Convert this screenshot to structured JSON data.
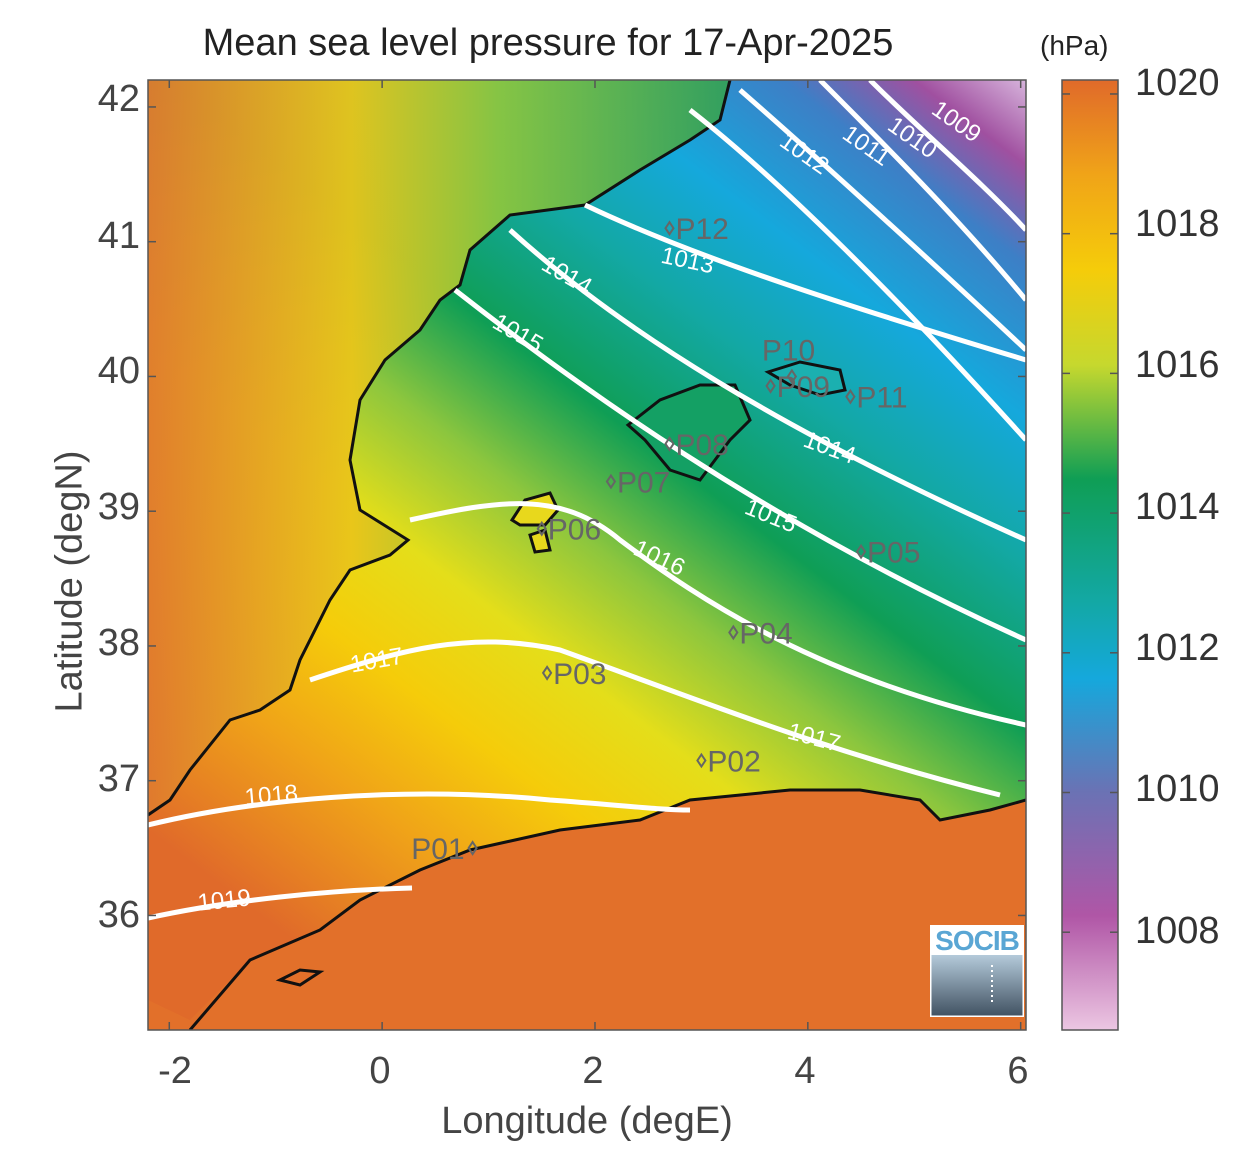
{
  "title": "Mean sea level pressure for 17-Apr-2025",
  "colorbar_unit": "(hPa)",
  "xlabel": "Longitude (degE)",
  "ylabel": "Latitude (degN)",
  "xticks": [
    "-2",
    "0",
    "2",
    "4",
    "6"
  ],
  "yticks": [
    "42",
    "41",
    "40",
    "39",
    "38",
    "37",
    "36"
  ],
  "colorbar_ticks": [
    "1020",
    "1018",
    "1016",
    "1014",
    "1012",
    "1010",
    "1008"
  ],
  "logo_text": "SOCIB",
  "colors": {
    "high": "#e06a2a",
    "mid_high": "#f2d40c",
    "mid": "#0f9e55",
    "low": "#15a8dc",
    "very_low": "#a050a0",
    "contour": "#ffffff",
    "coast": "#111111",
    "station": "#666666"
  },
  "chart_data": {
    "type": "heatmap",
    "variable": "Mean sea level pressure",
    "unit": "hPa",
    "xlim": [
      -2.2,
      6.05
    ],
    "ylim": [
      35.15,
      42.2
    ],
    "clim": [
      1006.6,
      1020.2
    ],
    "contour_levels": [
      {
        "level": 1009,
        "label": "1009"
      },
      {
        "level": 1010,
        "label": "1010"
      },
      {
        "level": 1011,
        "label": "1011"
      },
      {
        "level": 1012,
        "label": "1012"
      },
      {
        "level": 1013,
        "label": "1013"
      },
      {
        "level": 1014,
        "label": "1014"
      },
      {
        "level": 1015,
        "label": "1015"
      },
      {
        "level": 1016,
        "label": "1016"
      },
      {
        "level": 1017,
        "label": "1017"
      },
      {
        "level": 1018,
        "label": "1018"
      },
      {
        "level": 1019,
        "label": "1019"
      }
    ],
    "stations": [
      {
        "name": "P01",
        "lon": 0.85,
        "lat": 36.5
      },
      {
        "name": "P02",
        "lon": 3.0,
        "lat": 37.15
      },
      {
        "name": "P03",
        "lon": 1.55,
        "lat": 37.8
      },
      {
        "name": "P04",
        "lon": 3.3,
        "lat": 38.1
      },
      {
        "name": "P05",
        "lon": 4.5,
        "lat": 38.7
      },
      {
        "name": "P06",
        "lon": 1.5,
        "lat": 38.87
      },
      {
        "name": "P07",
        "lon": 2.15,
        "lat": 39.22
      },
      {
        "name": "P08",
        "lon": 2.7,
        "lat": 39.5
      },
      {
        "name": "P09",
        "lon": 3.65,
        "lat": 39.93
      },
      {
        "name": "P10",
        "lon": 3.85,
        "lat": 40.0
      },
      {
        "name": "P11",
        "lon": 4.4,
        "lat": 39.85
      },
      {
        "name": "P12",
        "lon": 2.7,
        "lat": 41.1
      }
    ]
  }
}
